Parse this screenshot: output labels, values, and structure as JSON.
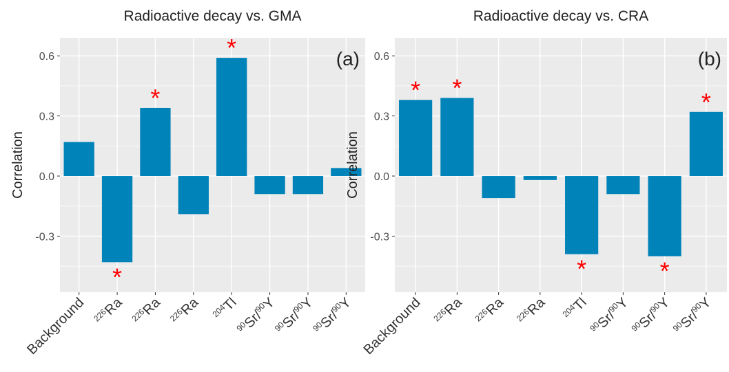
{
  "chart_data": [
    {
      "type": "bar",
      "title": "Radioactive decay vs. GMA",
      "y_label": "Correlation",
      "panel_label": "(a)",
      "categories": [
        "Background",
        "226Ra",
        "226Ra",
        "226Ra",
        "204Tl",
        "90Sr/90Y",
        "90Sr/90Y",
        "90Sr/90Y"
      ],
      "values": [
        0.17,
        -0.43,
        0.34,
        -0.19,
        0.59,
        -0.09,
        -0.09,
        0.04
      ],
      "significant": [
        false,
        true,
        true,
        false,
        true,
        false,
        false,
        false
      ],
      "significance_marker": "*",
      "color": "#0083b8",
      "marker_color": "#ff0000",
      "ylim": [
        -0.58,
        0.69
      ],
      "yticks": [
        {
          "value": -0.3,
          "label": "-0.3"
        },
        {
          "value": 0,
          "label": "0.0"
        },
        0.3,
        0.6
      ],
      "grid": true
    },
    {
      "type": "bar",
      "title": "Radioactive decay vs. CRA",
      "y_label": "Correlation",
      "panel_label": "(b)",
      "categories": [
        "Background",
        "226Ra",
        "226Ra",
        "226Ra",
        "204Tl",
        "90Sr/90Y",
        "90Sr/90Y",
        "90Sr/90Y"
      ],
      "values": [
        0.38,
        0.39,
        -0.11,
        -0.02,
        -0.39,
        -0.09,
        -0.4,
        0.32
      ],
      "significant": [
        true,
        true,
        false,
        false,
        true,
        false,
        true,
        true
      ],
      "significance_marker": "*",
      "color": "#0083b8",
      "marker_color": "#ff0000",
      "ylim": [
        -0.58,
        0.69
      ],
      "yticks": [
        {
          "value": -0.3,
          "label": "-0.3"
        },
        {
          "value": 0,
          "label": "0.0"
        },
        0.3,
        0.6
      ],
      "grid": true
    }
  ]
}
